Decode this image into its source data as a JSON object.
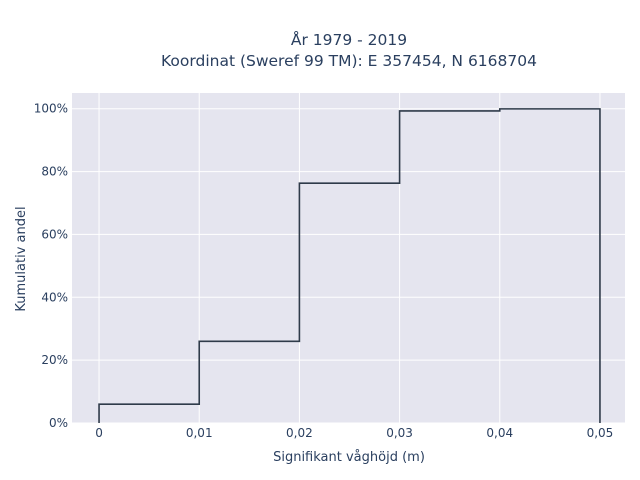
{
  "chart_data": {
    "type": "step",
    "title_lines": [
      "År 1979 - 2019",
      "Koordinat (Sweref 99 TM): E 357454, N 6168704"
    ],
    "xlabel": "Signifikant våghöjd (m)",
    "ylabel": "Kumulativ andel",
    "x_ticks": [
      0,
      0.01,
      0.02,
      0.03,
      0.04,
      0.05
    ],
    "x_tick_labels": [
      "0",
      "0,01",
      "0,02",
      "0,03",
      "0,04",
      "0,05"
    ],
    "y_ticks": [
      0,
      0.2,
      0.4,
      0.6,
      0.8,
      1.0
    ],
    "y_tick_labels": [
      "0%",
      "20%",
      "40%",
      "60%",
      "80%",
      "100%"
    ],
    "xlim": [
      -0.0027,
      0.0525
    ],
    "ylim": [
      0,
      1.05
    ],
    "grid": true,
    "series": [
      {
        "x": [
          0,
          0.01,
          0.02,
          0.03,
          0.04,
          0.05
        ],
        "y": [
          0.06,
          0.26,
          0.763,
          0.993,
          0.9995,
          0.9995
        ],
        "color": "#2f3b4a"
      }
    ],
    "colors": {
      "plot_bg": "#e5e5ef",
      "grid": "#ffffff",
      "line": "#2f3b4a",
      "text": "#2a3f5f"
    }
  }
}
